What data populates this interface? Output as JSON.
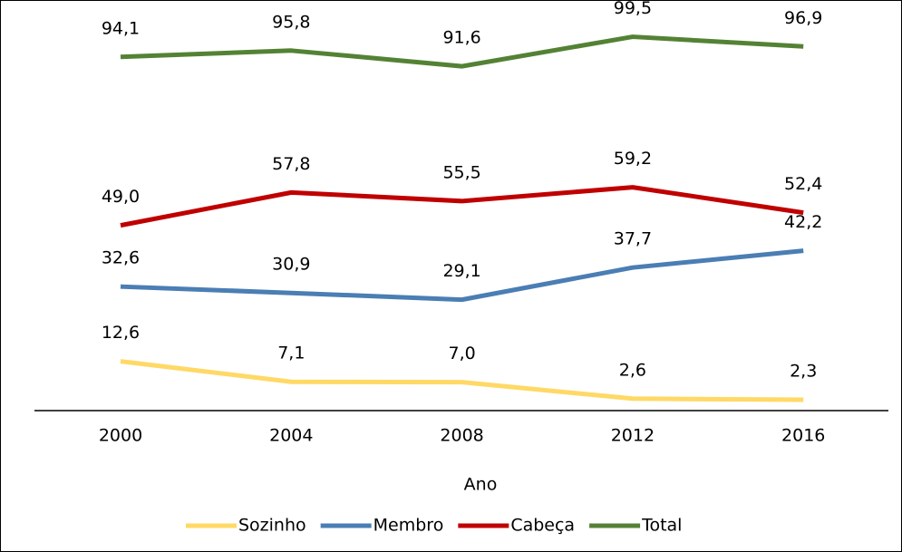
{
  "chart_data": {
    "type": "line",
    "x_label": "Ano",
    "categories": [
      "2000",
      "2004",
      "2008",
      "2012",
      "2016"
    ],
    "series": [
      {
        "name": "Sozinho",
        "color": "#ffd966",
        "values": [
          12.6,
          7.1,
          7.0,
          2.6,
          2.3
        ],
        "value_labels": [
          "12,6",
          "7,1",
          "7,0",
          "2,6",
          "2,3"
        ]
      },
      {
        "name": "Membro",
        "color": "#4a7eb4",
        "values": [
          32.6,
          30.9,
          29.1,
          37.7,
          42.2
        ],
        "value_labels": [
          "32,6",
          "30,9",
          "29,1",
          "37,7",
          "42,2"
        ]
      },
      {
        "name": "Cabeça",
        "color": "#c00000",
        "values": [
          49.0,
          57.8,
          55.5,
          59.2,
          52.4
        ],
        "value_labels": [
          "49,0",
          "57,8",
          "55,5",
          "59,2",
          "52,4"
        ]
      },
      {
        "name": "Total",
        "color": "#548235",
        "values": [
          94.1,
          95.8,
          91.6,
          99.5,
          96.9
        ],
        "value_labels": [
          "94,1",
          "95,8",
          "91,6",
          "99,5",
          "96,9"
        ]
      }
    ]
  }
}
